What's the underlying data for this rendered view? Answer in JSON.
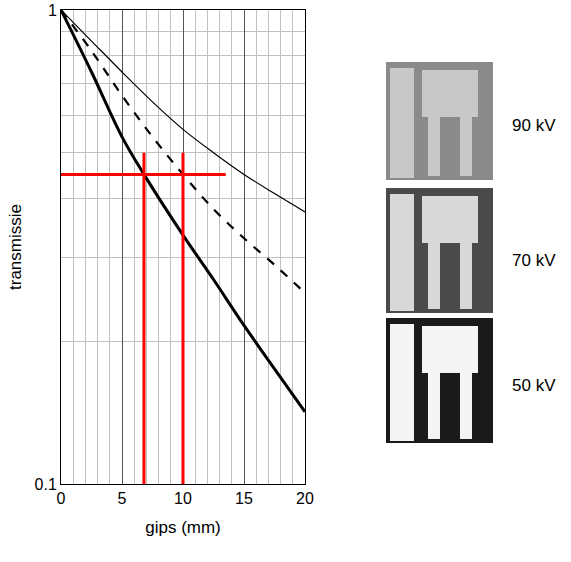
{
  "chart_data": {
    "type": "line",
    "xlabel": "gips (mm)",
    "ylabel": "transmissie",
    "xlim": [
      0,
      20
    ],
    "xticks": [
      0,
      5,
      10,
      15,
      20
    ],
    "ylim": [
      0.1,
      1
    ],
    "yticks": [
      0.1,
      1
    ],
    "log": "y",
    "grid": true,
    "tick_labels": true,
    "series": [
      {
        "color": "#000000",
        "line_style": "thin",
        "x": [
          0,
          2.5,
          5,
          7.5,
          10,
          12.5,
          15,
          17.5,
          20
        ],
        "values": [
          1,
          0.86,
          0.74,
          0.64,
          0.56,
          0.5,
          0.45,
          0.41,
          0.375
        ]
      },
      {
        "color": "#000000",
        "line_style": "dashed",
        "x": [
          0,
          2.5,
          5,
          7.5,
          10,
          12.5,
          15,
          17.5,
          20
        ],
        "values": [
          1,
          0.82,
          0.66,
          0.54,
          0.45,
          0.38,
          0.33,
          0.29,
          0.253
        ]
      },
      {
        "color": "#000000",
        "line_style": "thick",
        "x": [
          0,
          2.5,
          5,
          6.8,
          10,
          12.5,
          15,
          17.5,
          20
        ],
        "values": [
          1,
          0.74,
          0.54,
          0.45,
          0.335,
          0.27,
          0.216,
          0.175,
          0.142
        ]
      },
      {
        "color": "#ff0000",
        "line_style": "thick",
        "x": [
          0,
          13.5
        ],
        "values": [
          0.45,
          0.45
        ]
      },
      {
        "color": "#ff0000",
        "line_style": "thick",
        "x": [
          6.8,
          6.8
        ],
        "values": [
          0.1,
          0.5
        ]
      },
      {
        "color": "#ff0000",
        "line_style": "thick",
        "x": [
          10,
          10
        ],
        "values": [
          0.1,
          0.5
        ]
      }
    ],
    "annotations": [
      "90 kV",
      "70 kV",
      "50 kV"
    ]
  }
}
